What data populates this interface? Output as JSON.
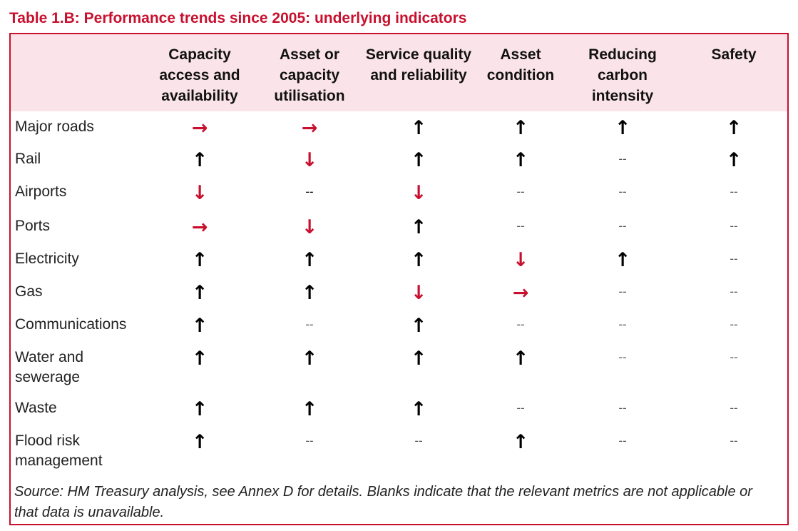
{
  "header": {
    "title": "Table 1.B: Performance trends since 2005: underlying indicators"
  },
  "table": {
    "columns": [
      "Capacity access and availability",
      "Asset or capacity utilisation",
      "Service quality and reliability",
      "Asset condition",
      "Reducing carbon intensity",
      "Safety"
    ],
    "rows": [
      {
        "label": "Major roads",
        "cells": [
          {
            "text": "→",
            "color": "#c8102e"
          },
          {
            "text": "→",
            "color": "#c8102e"
          },
          {
            "text": "↑",
            "color": "#000000"
          },
          {
            "text": "↑",
            "color": "#000000"
          },
          {
            "text": "↑",
            "color": "#000000"
          },
          {
            "text": "↑",
            "color": "#000000"
          }
        ]
      },
      {
        "label": "Rail",
        "cells": [
          {
            "text": "↑",
            "color": "#000000"
          },
          {
            "text": "↓",
            "color": "#c8102e"
          },
          {
            "text": "↑",
            "color": "#000000"
          },
          {
            "text": "↑",
            "color": "#000000"
          },
          {
            "text": "--",
            "color": "#555555"
          },
          {
            "text": "↑",
            "color": "#000000"
          }
        ]
      },
      {
        "label": "Airports",
        "cells": [
          {
            "text": "↓",
            "color": "#c8102e"
          },
          {
            "text": "--",
            "color": "#000000"
          },
          {
            "text": "↓",
            "color": "#c8102e"
          },
          {
            "text": "--",
            "color": "#555555"
          },
          {
            "text": "--",
            "color": "#555555"
          },
          {
            "text": "--",
            "color": "#555555"
          }
        ]
      },
      {
        "label": "Ports",
        "cells": [
          {
            "text": "→",
            "color": "#c8102e"
          },
          {
            "text": "↓",
            "color": "#c8102e"
          },
          {
            "text": "↑",
            "color": "#000000"
          },
          {
            "text": "--",
            "color": "#555555"
          },
          {
            "text": "--",
            "color": "#555555"
          },
          {
            "text": "--",
            "color": "#555555"
          }
        ]
      },
      {
        "label": "Electricity",
        "cells": [
          {
            "text": "↑",
            "color": "#000000"
          },
          {
            "text": "↑",
            "color": "#000000"
          },
          {
            "text": "↑",
            "color": "#000000"
          },
          {
            "text": "↓",
            "color": "#c8102e"
          },
          {
            "text": "↑",
            "color": "#000000"
          },
          {
            "text": "--",
            "color": "#555555"
          }
        ]
      },
      {
        "label": "Gas",
        "cells": [
          {
            "text": "↑",
            "color": "#000000"
          },
          {
            "text": "↑",
            "color": "#000000"
          },
          {
            "text": "↓",
            "color": "#c8102e"
          },
          {
            "text": "→",
            "color": "#c8102e"
          },
          {
            "text": "--",
            "color": "#555555"
          },
          {
            "text": "--",
            "color": "#555555"
          }
        ]
      },
      {
        "label": "Communications",
        "cells": [
          {
            "text": "↑",
            "color": "#000000"
          },
          {
            "text": "--",
            "color": "#555555"
          },
          {
            "text": "↑",
            "color": "#000000"
          },
          {
            "text": "--",
            "color": "#555555"
          },
          {
            "text": "--",
            "color": "#555555"
          },
          {
            "text": "--",
            "color": "#555555"
          }
        ]
      },
      {
        "label": "Water and sewerage",
        "cells": [
          {
            "text": "↑",
            "color": "#000000"
          },
          {
            "text": "↑",
            "color": "#000000"
          },
          {
            "text": "↑",
            "color": "#000000"
          },
          {
            "text": "↑",
            "color": "#000000"
          },
          {
            "text": "--",
            "color": "#555555"
          },
          {
            "text": "--",
            "color": "#555555"
          }
        ]
      },
      {
        "label": "Waste",
        "cells": [
          {
            "text": "↑",
            "color": "#000000"
          },
          {
            "text": "↑",
            "color": "#000000"
          },
          {
            "text": "↑",
            "color": "#000000"
          },
          {
            "text": "--",
            "color": "#555555"
          },
          {
            "text": "--",
            "color": "#555555"
          },
          {
            "text": "--",
            "color": "#555555"
          }
        ]
      },
      {
        "label": "Flood risk management",
        "cells": [
          {
            "text": "↑",
            "color": "#000000"
          },
          {
            "text": "--",
            "color": "#555555"
          },
          {
            "text": "--",
            "color": "#555555"
          },
          {
            "text": "↑",
            "color": "#000000"
          },
          {
            "text": "--",
            "color": "#555555"
          },
          {
            "text": "--",
            "color": "#555555"
          }
        ]
      }
    ]
  },
  "footer": {
    "source": "Source: HM Treasury analysis, see Annex D for details. Blanks indicate that the relevant metrics are not applicable or that data is unavailable."
  }
}
